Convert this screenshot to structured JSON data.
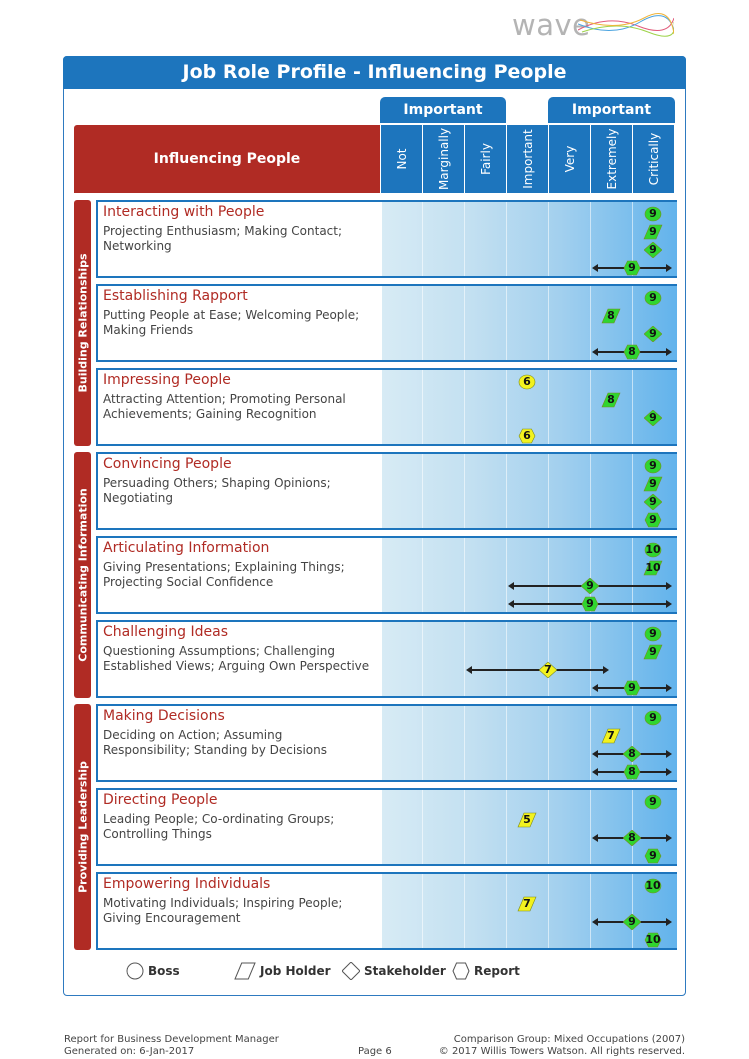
{
  "logo": {
    "text": "wave"
  },
  "title": "Job Role Profile - Influencing People",
  "header": {
    "main_label": "Influencing People",
    "important_left": "Important",
    "important_right": "Important",
    "columns": [
      "Not",
      "Marginally",
      "Fairly",
      "Important",
      "Very",
      "Extremely",
      "Critically"
    ]
  },
  "groups": [
    {
      "label": "Building Relationships",
      "rows": [
        0,
        1,
        2
      ]
    },
    {
      "label": "Communicating Information",
      "rows": [
        3,
        4,
        5
      ]
    },
    {
      "label": "Providing Leadership",
      "rows": [
        6,
        7,
        8
      ]
    }
  ],
  "rows": [
    {
      "title": "Interacting with People",
      "desc": "Projecting Enthusiasm; Making Contact; Networking",
      "markers": [
        {
          "shape": "circle",
          "value": 9,
          "level": 9
        },
        {
          "shape": "para",
          "value": 9,
          "level": 9
        },
        {
          "shape": "diamond",
          "value": 9,
          "level": 9
        },
        {
          "shape": "hex",
          "value": 9,
          "level": 8.5,
          "range": [
            8,
            9
          ]
        }
      ]
    },
    {
      "title": "Establishing Rapport",
      "desc": "Putting People at Ease; Welcoming People; Making Friends",
      "markers": [
        {
          "shape": "circle",
          "value": 9,
          "level": 9
        },
        {
          "shape": "para",
          "value": 8,
          "level": 8
        },
        {
          "shape": "diamond",
          "value": 9,
          "level": 9
        },
        {
          "shape": "hex",
          "value": 8,
          "level": 8.5,
          "range": [
            8,
            9
          ]
        }
      ]
    },
    {
      "title": "Impressing People",
      "desc": "Attracting Attention; Promoting Personal Achievements; Gaining Recognition",
      "markers": [
        {
          "shape": "circle",
          "value": 6,
          "level": 6
        },
        {
          "shape": "para",
          "value": 8,
          "level": 8
        },
        {
          "shape": "diamond",
          "value": 9,
          "level": 9
        },
        {
          "shape": "hex",
          "value": 6,
          "level": 6
        }
      ]
    },
    {
      "title": "Convincing People",
      "desc": "Persuading Others; Shaping Opinions; Negotiating",
      "markers": [
        {
          "shape": "circle",
          "value": 9,
          "level": 9
        },
        {
          "shape": "para",
          "value": 9,
          "level": 9
        },
        {
          "shape": "diamond",
          "value": 9,
          "level": 9
        },
        {
          "shape": "hex",
          "value": 9,
          "level": 9
        }
      ]
    },
    {
      "title": "Articulating Information",
      "desc": "Giving Presentations; Explaining Things; Projecting Social Confidence",
      "markers": [
        {
          "shape": "circle",
          "value": 10,
          "level": 9
        },
        {
          "shape": "para",
          "value": 10,
          "level": 9
        },
        {
          "shape": "diamond",
          "value": 9,
          "level": 7.5,
          "range": [
            6,
            9
          ]
        },
        {
          "shape": "hex",
          "value": 9,
          "level": 7.5,
          "range": [
            6,
            9
          ]
        }
      ]
    },
    {
      "title": "Challenging Ideas",
      "desc": "Questioning Assumptions; Challenging Established Views; Arguing Own Perspective",
      "markers": [
        {
          "shape": "circle",
          "value": 9,
          "level": 9
        },
        {
          "shape": "para",
          "value": 9,
          "level": 9
        },
        {
          "shape": "diamond",
          "value": 7,
          "level": 6.5,
          "range": [
            5,
            7.5
          ]
        },
        {
          "shape": "hex",
          "value": 9,
          "level": 8.5,
          "range": [
            8,
            9
          ]
        }
      ]
    },
    {
      "title": "Making Decisions",
      "desc": "Deciding on Action; Assuming Responsibility; Standing by Decisions",
      "markers": [
        {
          "shape": "circle",
          "value": 9,
          "level": 9
        },
        {
          "shape": "para",
          "value": 7,
          "level": 8
        },
        {
          "shape": "diamond",
          "value": 8,
          "level": 8.5,
          "range": [
            8,
            9
          ]
        },
        {
          "shape": "hex",
          "value": 8,
          "level": 8.5,
          "range": [
            8,
            9
          ]
        }
      ]
    },
    {
      "title": "Directing People",
      "desc": "Leading People; Co-ordinating Groups; Controlling Things",
      "markers": [
        {
          "shape": "circle",
          "value": 9,
          "level": 9
        },
        {
          "shape": "para",
          "value": 5,
          "level": 6
        },
        {
          "shape": "diamond",
          "value": 8,
          "level": 8.5,
          "range": [
            8,
            9
          ]
        },
        {
          "shape": "hex",
          "value": 9,
          "level": 9
        }
      ]
    },
    {
      "title": "Empowering Individuals",
      "desc": "Motivating Individuals; Inspiring People; Giving Encouragement",
      "markers": [
        {
          "shape": "circle",
          "value": 10,
          "level": 9
        },
        {
          "shape": "para",
          "value": 7,
          "level": 6
        },
        {
          "shape": "diamond",
          "value": 9,
          "level": 8.5,
          "range": [
            8,
            9
          ]
        },
        {
          "shape": "hex",
          "value": 10,
          "level": 9
        }
      ]
    }
  ],
  "legend": [
    {
      "shape": "circle",
      "label": "Boss"
    },
    {
      "shape": "para",
      "label": "Job Holder"
    },
    {
      "shape": "diamond",
      "label": "Stakeholder"
    },
    {
      "shape": "hex",
      "label": "Report"
    }
  ],
  "footer": {
    "report_for": "Report for Business Development Manager",
    "generated": "Generated on: 6-Jan-2017",
    "page": "Page 6",
    "comparison": "Comparison Group: Mixed Occupations (2007)",
    "copyright": "© 2017 Willis Towers Watson. All rights reserved."
  },
  "colors": {
    "blue": "#1d75bd",
    "red": "#b02b24",
    "green_marker": "#2fd52f",
    "yellow_marker": "#f2f21f"
  }
}
